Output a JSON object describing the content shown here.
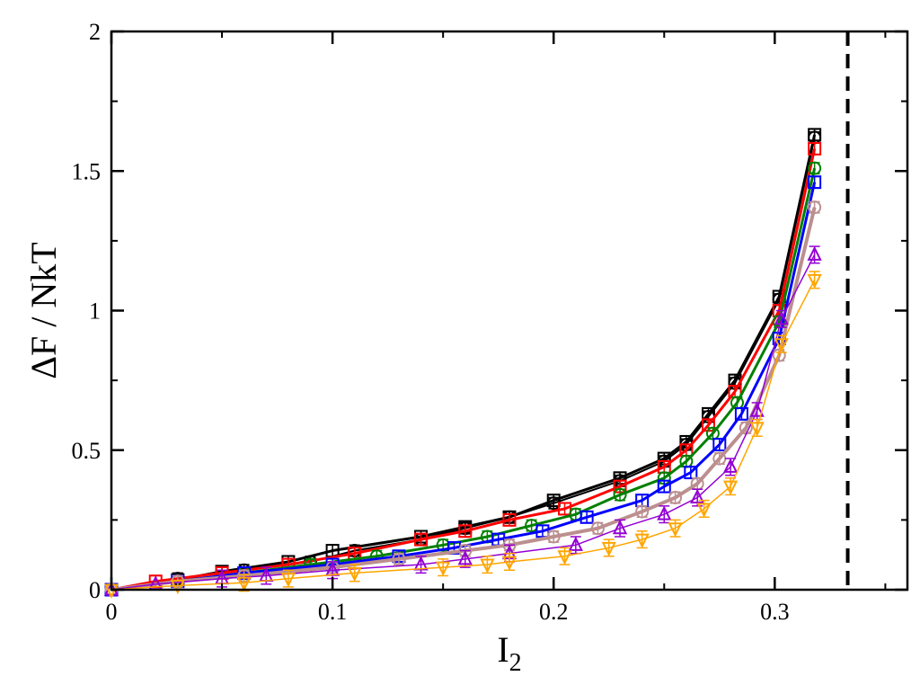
{
  "chart_data": {
    "type": "line",
    "xlabel": "I",
    "xlabel_sub": "2",
    "ylabel": "ΔF / NkT",
    "xlim": [
      0,
      0.36
    ],
    "ylim": [
      0,
      2
    ],
    "x_ticks": [
      {
        "value": 0,
        "label": "0"
      },
      {
        "value": 0.1,
        "label": "0.1"
      },
      {
        "value": 0.2,
        "label": "0.2"
      },
      {
        "value": 0.3,
        "label": "0.3"
      }
    ],
    "y_ticks": [
      {
        "value": 0,
        "label": "0"
      },
      {
        "value": 0.5,
        "label": "0.5"
      },
      {
        "value": 1,
        "label": "1"
      },
      {
        "value": 1.5,
        "label": "1.5"
      },
      {
        "value": 2,
        "label": "2"
      }
    ],
    "grid": false,
    "vertical_reference_line": {
      "x": 0.333,
      "style": "dashed",
      "color": "#000000"
    },
    "series": [
      {
        "color": "#000000",
        "marker": "square",
        "line_width": 3,
        "x": [
          0,
          0.03,
          0.05,
          0.08,
          0.1,
          0.14,
          0.16,
          0.18,
          0.2,
          0.23,
          0.25,
          0.26,
          0.27,
          0.282,
          0.302,
          0.318
        ],
        "y": [
          0,
          0.035,
          0.065,
          0.1,
          0.14,
          0.19,
          0.225,
          0.26,
          0.32,
          0.4,
          0.47,
          0.53,
          0.63,
          0.75,
          1.05,
          1.63
        ],
        "err": 0.02
      },
      {
        "color": "#000000",
        "marker": "circle",
        "line_width": 2,
        "x": [
          0,
          0.03,
          0.06,
          0.09,
          0.11,
          0.14,
          0.16,
          0.18,
          0.2,
          0.23,
          0.25,
          0.26,
          0.27,
          0.282,
          0.302,
          0.318
        ],
        "y": [
          0,
          0.04,
          0.07,
          0.1,
          0.14,
          0.18,
          0.22,
          0.26,
          0.31,
          0.39,
          0.46,
          0.52,
          0.62,
          0.74,
          1.04,
          1.62
        ],
        "err": 0.02
      },
      {
        "color": "#ff0000",
        "marker": "square",
        "line_width": 3,
        "x": [
          0,
          0.02,
          0.05,
          0.08,
          0.11,
          0.14,
          0.16,
          0.18,
          0.205,
          0.23,
          0.25,
          0.26,
          0.27,
          0.282,
          0.302,
          0.318
        ],
        "y": [
          0,
          0.03,
          0.06,
          0.09,
          0.13,
          0.18,
          0.21,
          0.25,
          0.29,
          0.37,
          0.44,
          0.5,
          0.59,
          0.71,
          1.0,
          1.58
        ],
        "err": 0.02
      },
      {
        "color": "#008000",
        "marker": "circle",
        "line_width": 3,
        "x": [
          0,
          0.03,
          0.06,
          0.09,
          0.12,
          0.15,
          0.17,
          0.19,
          0.21,
          0.23,
          0.25,
          0.26,
          0.272,
          0.283,
          0.302,
          0.318
        ],
        "y": [
          0,
          0.03,
          0.06,
          0.09,
          0.12,
          0.16,
          0.19,
          0.23,
          0.27,
          0.34,
          0.4,
          0.46,
          0.56,
          0.67,
          0.96,
          1.51
        ],
        "err": 0.02
      },
      {
        "color": "#0000ff",
        "marker": "square",
        "line_width": 3,
        "x": [
          0,
          0.03,
          0.06,
          0.1,
          0.13,
          0.155,
          0.175,
          0.195,
          0.215,
          0.24,
          0.25,
          0.262,
          0.275,
          0.285,
          0.302,
          0.318
        ],
        "y": [
          0,
          0.03,
          0.06,
          0.09,
          0.12,
          0.15,
          0.18,
          0.21,
          0.26,
          0.32,
          0.37,
          0.42,
          0.52,
          0.63,
          0.9,
          1.46
        ],
        "err": 0.02
      },
      {
        "color": "#bc8f8f",
        "marker": "circle",
        "line_width": 4,
        "x": [
          0,
          0.03,
          0.06,
          0.1,
          0.13,
          0.16,
          0.18,
          0.2,
          0.22,
          0.24,
          0.255,
          0.265,
          0.275,
          0.287,
          0.302,
          0.318
        ],
        "y": [
          0,
          0.03,
          0.05,
          0.08,
          0.11,
          0.14,
          0.16,
          0.19,
          0.22,
          0.28,
          0.33,
          0.38,
          0.47,
          0.58,
          0.84,
          1.37
        ],
        "err": 0.02
      },
      {
        "color": "#9400d3",
        "marker": "triangle-up",
        "line_width": 1.5,
        "x": [
          0,
          0.02,
          0.05,
          0.07,
          0.1,
          0.14,
          0.16,
          0.18,
          0.21,
          0.23,
          0.25,
          0.265,
          0.28,
          0.292,
          0.303,
          0.318
        ],
        "y": [
          0,
          0.02,
          0.04,
          0.05,
          0.07,
          0.09,
          0.11,
          0.13,
          0.16,
          0.22,
          0.27,
          0.33,
          0.44,
          0.64,
          0.97,
          1.2
        ],
        "err": 0.03
      },
      {
        "color": "#ffa500",
        "marker": "triangle-down",
        "line_width": 1.5,
        "x": [
          0,
          0.03,
          0.06,
          0.08,
          0.11,
          0.15,
          0.17,
          0.18,
          0.205,
          0.225,
          0.24,
          0.255,
          0.268,
          0.28,
          0.292,
          0.303,
          0.318
        ],
        "y": [
          0,
          0.015,
          0.025,
          0.04,
          0.06,
          0.08,
          0.09,
          0.1,
          0.12,
          0.15,
          0.18,
          0.22,
          0.29,
          0.37,
          0.58,
          0.88,
          1.11
        ],
        "err": 0.03
      }
    ]
  }
}
